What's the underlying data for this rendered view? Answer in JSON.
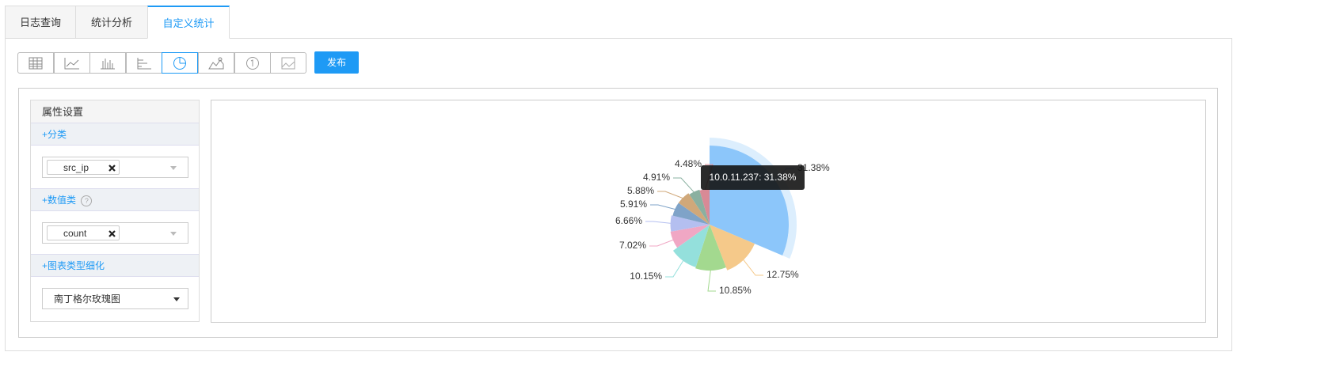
{
  "tabs": [
    "日志查询",
    "统计分析",
    "自定义统计"
  ],
  "toolbar": {
    "publish_button": "发布"
  },
  "sidebar": {
    "title": "属性设置",
    "category_section": "+分类",
    "category_field": "src_ip",
    "metric_section": "+数值类",
    "metric_help": "?",
    "metric_field": "count",
    "chart_type_section": "+图表类型细化",
    "chart_type": "南丁格尔玫瑰图"
  },
  "chart_data": {
    "type": "rose",
    "categories": [
      "10.0.11.237",
      null,
      null,
      null,
      null,
      null,
      null,
      null,
      null,
      null
    ],
    "values": [
      31.38,
      12.75,
      10.85,
      10.15,
      7.02,
      6.66,
      5.91,
      5.88,
      4.91,
      4.48
    ],
    "value_labels": [
      "31.38%",
      "12.75%",
      "10.85%",
      "10.15%",
      "7.02%",
      "6.66%",
      "5.91%",
      "5.88%",
      "4.91%",
      "4.48%"
    ],
    "colors": [
      "#8cc6fa",
      "#f5c98a",
      "#a3d98f",
      "#94e0dc",
      "#f0a7c4",
      "#b4bff0",
      "#7fa3c8",
      "#d0a87a",
      "#8ab0a0",
      "#d88a96"
    ]
  }
}
